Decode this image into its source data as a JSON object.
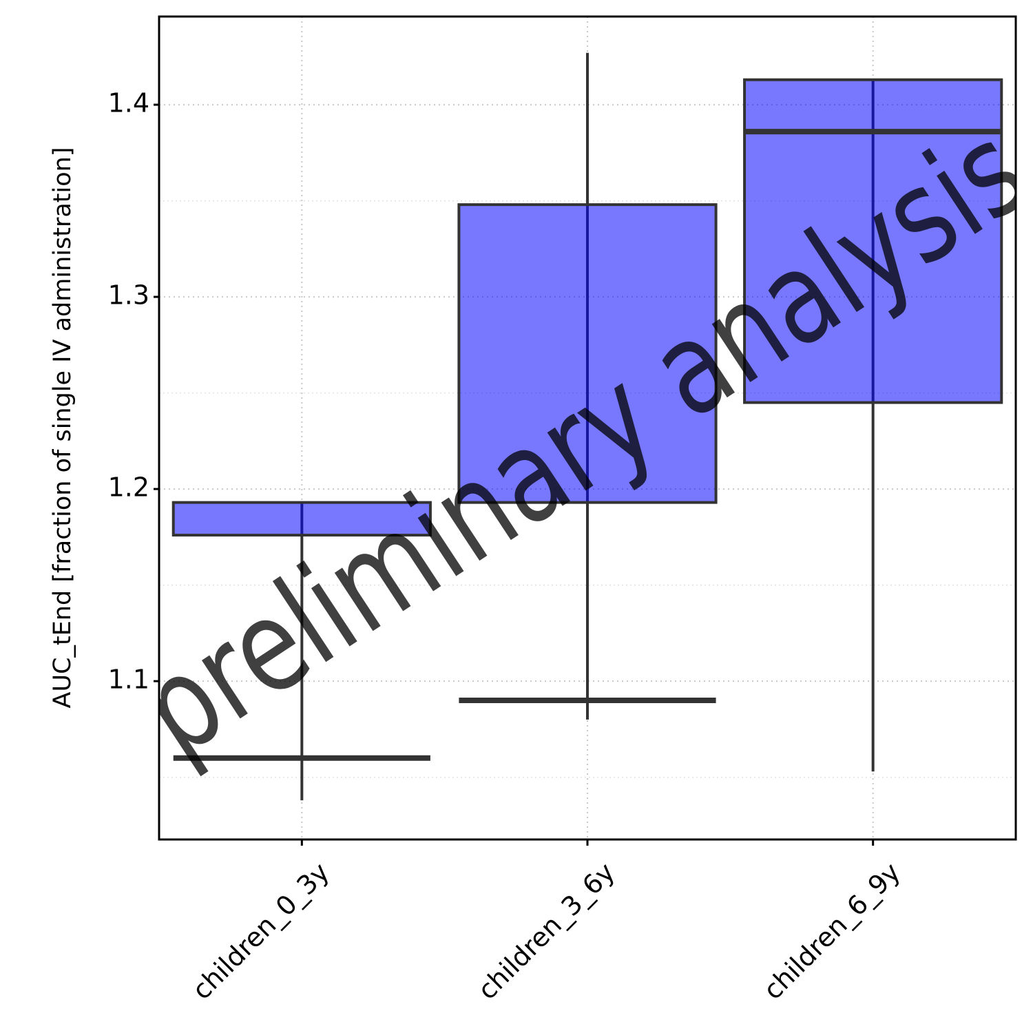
{
  "chart_data": {
    "type": "box",
    "ylabel": "AUC_tEnd [fraction of single IV administration]",
    "watermark": "preliminary analysis",
    "categories": [
      "children_0_3y",
      "children_3_6y",
      "children_6_9y"
    ],
    "series": [
      {
        "color": "#0000ff",
        "whisker_low": [
          1.038,
          1.08,
          1.053
        ],
        "q1": [
          1.176,
          1.193,
          1.245
        ],
        "median": [
          1.06,
          1.09,
          1.386
        ],
        "q3": [
          1.193,
          1.348,
          1.413
        ],
        "whisker_high": [
          1.193,
          1.427,
          1.413
        ]
      }
    ],
    "ylim": [
      1.0176,
      1.4459
    ],
    "yticks": [
      1.1,
      1.2,
      1.3,
      1.4
    ],
    "minor_yticks": [
      1.05,
      1.15,
      1.25,
      1.35
    ],
    "grid": true
  }
}
